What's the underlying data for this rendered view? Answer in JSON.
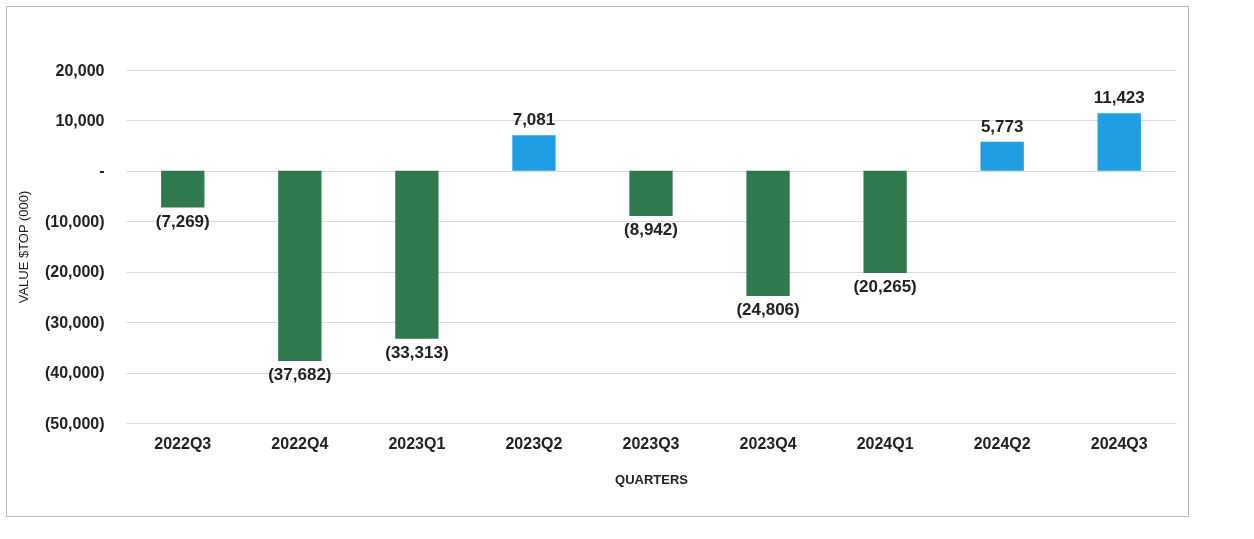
{
  "chart_data": {
    "type": "bar",
    "xlabel": "QUARTERS",
    "ylabel": "VALUE $TOP (000)",
    "categories": [
      "2022Q3",
      "2022Q4",
      "2023Q1",
      "2023Q2",
      "2023Q3",
      "2023Q4",
      "2024Q1",
      "2024Q2",
      "2024Q3"
    ],
    "values": [
      -7269,
      -37682,
      -33313,
      7081,
      -8942,
      -24806,
      -20265,
      5773,
      11423
    ],
    "colors": [
      "#2e7a4e",
      "#2e7a4e",
      "#2e7a4e",
      "#1f9ee3",
      "#2e7a4e",
      "#2e7a4e",
      "#2e7a4e",
      "#1f9ee3",
      "#1f9ee3"
    ],
    "value_labels": [
      "(7,269)",
      "(37,682)",
      "(33,313)",
      "7,081",
      "(8,942)",
      "(24,806)",
      "(20,265)",
      "5,773",
      "11,423"
    ],
    "ylim": [
      -50000,
      20000
    ],
    "yticks": [
      {
        "value": -50000,
        "label": "(50,000)"
      },
      {
        "value": -40000,
        "label": "(40,000)"
      },
      {
        "value": -30000,
        "label": "(30,000)"
      },
      {
        "value": -20000,
        "label": "(20,000)"
      },
      {
        "value": -10000,
        "label": "(10,000)"
      },
      {
        "value": 0,
        "label": "-"
      },
      {
        "value": 10000,
        "label": "10,000"
      },
      {
        "value": 20000,
        "label": "20,000"
      }
    ],
    "grid": "y"
  }
}
